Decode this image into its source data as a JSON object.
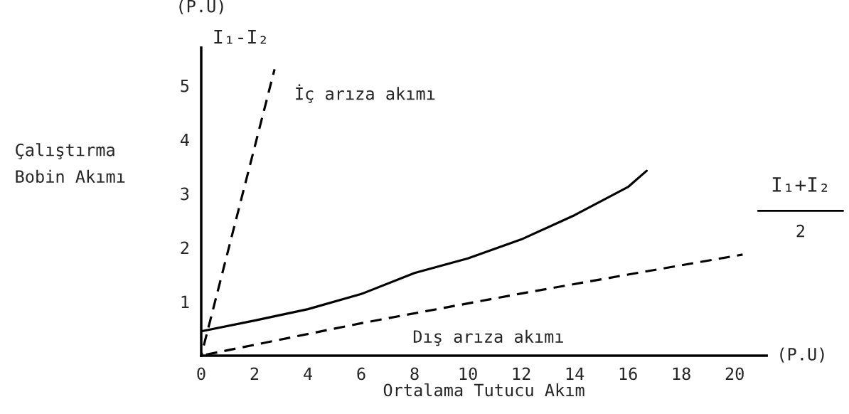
{
  "chart_data": {
    "type": "line",
    "xlabel": "Ortalama Tutucu Akım",
    "ylabel": "Çalıştırma\nBobin Akımı",
    "annotations": [
      "(P.U)",
      "I₁-I₂",
      "(P.U)",
      "I₁+I₂\n2"
    ],
    "xlim": [
      0,
      21.2
    ],
    "ylim": [
      0,
      5.7
    ],
    "xticks": [
      0,
      2,
      4,
      6,
      8,
      10,
      12,
      14,
      16,
      18,
      20
    ],
    "yticks": [
      1,
      2,
      3,
      4,
      5
    ],
    "grid": false,
    "legend": false,
    "marker": "none",
    "series": [
      {
        "name": "İç arıza akımı",
        "color": "#000000",
        "line_style": "dashed",
        "x": [
          0,
          2.75
        ],
        "values": [
          0,
          5.3
        ]
      },
      {
        "color": "#000000",
        "line_style": "solid",
        "x": [
          0,
          2,
          4,
          6,
          8,
          10,
          12,
          14,
          16,
          16.7
        ],
        "values": [
          0.45,
          0.65,
          0.86,
          1.14,
          1.53,
          1.8,
          2.15,
          2.6,
          3.12,
          3.42
        ]
      },
      {
        "name": "Dış arıza akımı",
        "color": "#000000",
        "line_style": "dashed",
        "x": [
          0,
          6,
          12,
          16,
          20.3
        ],
        "values": [
          0,
          0.6,
          1.15,
          1.5,
          1.87
        ]
      }
    ]
  }
}
